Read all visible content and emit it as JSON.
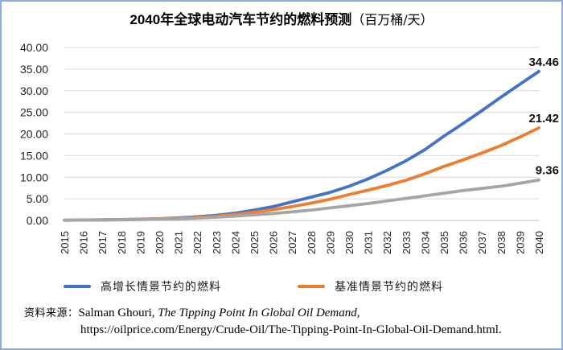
{
  "page": {
    "border_color": "#8FAADC",
    "background": "#FFFFFF"
  },
  "title": {
    "main": "2040年全球电动汽车节约的燃料预测",
    "unit": "（百万桶/天）"
  },
  "legend": [
    {
      "label": "高增长情景节约的燃料",
      "color": "#4472C4"
    },
    {
      "label": "基准情景节约的燃料",
      "color": "#ED7D31"
    }
  ],
  "source": {
    "prefix": "资料来源：",
    "author": "Salman Ghouri, ",
    "work_italic": "The Tipping Point In Global Oil Demand,",
    "url": "https://oilprice.com/Energy/Crude-Oil/The-Tipping-Point-In-Global-Oil-Demand.html."
  },
  "chart_data": {
    "type": "line",
    "title": "2040年全球电动汽车节约的燃料预测（百万桶/天）",
    "xlabel": "",
    "ylabel": "",
    "ylim": [
      0,
      40
    ],
    "ytick_step": 5,
    "ytick_labels": [
      "0.00",
      "5.00",
      "10.00",
      "15.00",
      "20.00",
      "25.00",
      "30.00",
      "35.00",
      "40.00"
    ],
    "grid": true,
    "legend_position": "bottom",
    "x": [
      2015,
      2016,
      2017,
      2018,
      2019,
      2020,
      2021,
      2022,
      2023,
      2024,
      2025,
      2026,
      2027,
      2028,
      2029,
      2030,
      2031,
      2032,
      2033,
      2034,
      2035,
      2036,
      2037,
      2038,
      2039,
      2040
    ],
    "series": [
      {
        "name": "高增长情景节约的燃料",
        "color": "#4472C4",
        "end_label": "34.46",
        "values": [
          0.05,
          0.1,
          0.15,
          0.2,
          0.3,
          0.4,
          0.6,
          0.85,
          1.2,
          1.7,
          2.4,
          3.2,
          4.3,
          5.4,
          6.5,
          7.9,
          9.6,
          11.6,
          13.8,
          16.4,
          19.5,
          22.4,
          25.4,
          28.5,
          31.5,
          34.46
        ]
      },
      {
        "name": "基准情景节约的燃料",
        "color": "#ED7D31",
        "end_label": "21.42",
        "values": [
          0.05,
          0.1,
          0.12,
          0.18,
          0.25,
          0.35,
          0.5,
          0.7,
          1.0,
          1.4,
          1.9,
          2.5,
          3.2,
          4.0,
          4.9,
          6.0,
          7.0,
          8.1,
          9.3,
          10.8,
          12.5,
          14.0,
          15.6,
          17.3,
          19.3,
          21.42
        ]
      },
      {
        "name": "",
        "color": "#A5A5A5",
        "end_label": "9.36",
        "values": [
          0.05,
          0.08,
          0.1,
          0.15,
          0.2,
          0.28,
          0.4,
          0.55,
          0.75,
          1.0,
          1.3,
          1.6,
          2.0,
          2.4,
          2.9,
          3.4,
          3.9,
          4.5,
          5.1,
          5.7,
          6.3,
          6.9,
          7.4,
          7.9,
          8.6,
          9.36
        ]
      }
    ]
  }
}
